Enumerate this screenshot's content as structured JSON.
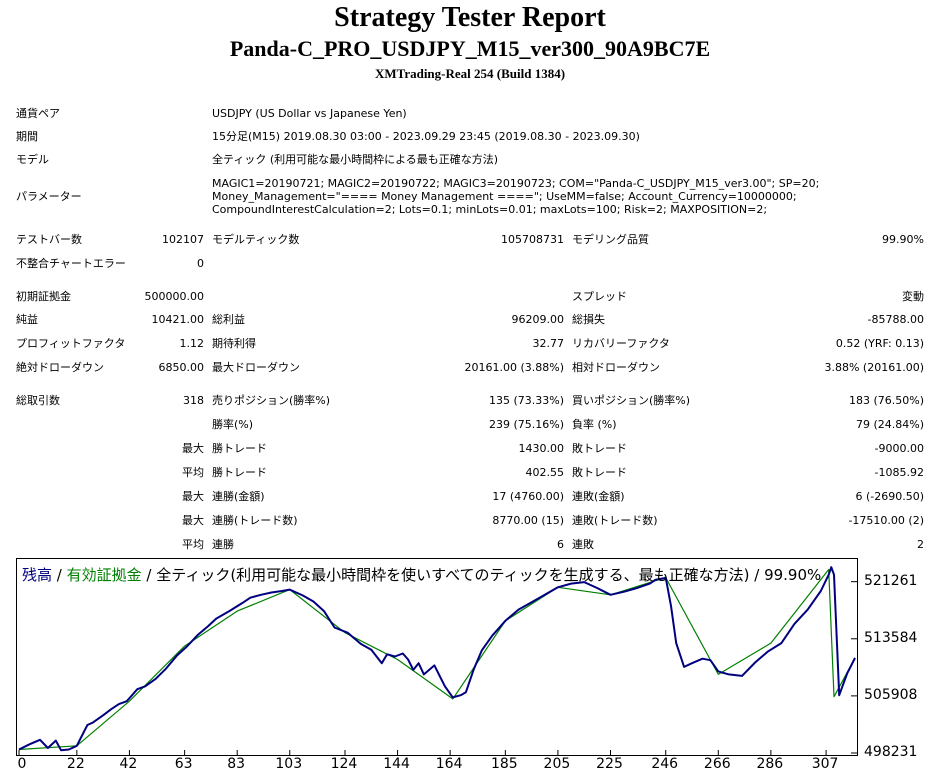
{
  "header": {
    "title": "Strategy Tester Report",
    "subtitle": "Panda-C_PRO_USDJPY_M15_ver300_90A9BC7E",
    "server": "XMTrading-Real 254 (Build 1384)"
  },
  "info": {
    "symbol_label": "通貨ペア",
    "symbol_value": "USDJPY (US Dollar vs Japanese Yen)",
    "period_label": "期間",
    "period_value": "15分足(M15) 2019.08.30 03:00 - 2023.09.29 23:45 (2019.08.30 - 2023.09.30)",
    "model_label": "モデル",
    "model_value": "全ティック (利用可能な最小時間枠による最も正確な方法)",
    "params_label": "パラメーター",
    "params_value": "MAGIC1=20190721; MAGIC2=20190722; MAGIC3=20190723; COM=\"Panda-C_USDJPY_M15_ver3.00\"; SP=20; Money_Management=\"==== Money Management ====\"; UseMM=false; Account_Currency=10000000; CompoundInterestCalculation=2; Lots=0.1; minLots=0.01; maxLots=100; Risk=2; MAXPOSITION=2;"
  },
  "stats": {
    "bars_label": "テストバー数",
    "bars_value": "102107",
    "ticks_label": "モデルティック数",
    "ticks_value": "105708731",
    "quality_label": "モデリング品質",
    "quality_value": "99.90%",
    "mismatch_label": "不整合チャートエラー",
    "mismatch_value": "0",
    "deposit_label": "初期証拠金",
    "deposit_value": "500000.00",
    "spread_label": "スプレッド",
    "spread_value": "変動",
    "net_label": "純益",
    "net_value": "10421.00",
    "gross_profit_label": "総利益",
    "gross_profit_value": "96209.00",
    "gross_loss_label": "総損失",
    "gross_loss_value": "-85788.00",
    "pf_label": "プロフィットファクタ",
    "pf_value": "1.12",
    "payoff_label": "期待利得",
    "payoff_value": "32.77",
    "recovery_label": "リカバリーファクタ",
    "recovery_value": "0.52 (YRF: 0.13)",
    "abs_dd_label": "絶対ドローダウン",
    "abs_dd_value": "6850.00",
    "max_dd_label": "最大ドローダウン",
    "max_dd_value": "20161.00 (3.88%)",
    "rel_dd_label": "相対ドローダウン",
    "rel_dd_value": "3.88% (20161.00)",
    "total_trades_label": "総取引数",
    "total_trades_value": "318",
    "short_label": "売りポジション(勝率%)",
    "short_value": "135 (73.33%)",
    "long_label": "買いポジション(勝率%)",
    "long_value": "183 (76.50%)",
    "win_pct_label": "勝率(%)",
    "win_pct_value": "239 (75.16%)",
    "loss_pct_label": "負率 (%)",
    "loss_pct_value": "79 (24.84%)",
    "largest": "最大",
    "average": "平均",
    "max_win_label": "勝トレード",
    "max_win_value": "1430.00",
    "max_loss_label": "敗トレード",
    "max_loss_value": "-9000.00",
    "avg_win_label": "勝トレード",
    "avg_win_value": "402.55",
    "avg_loss_label": "敗トレード",
    "avg_loss_value": "-1085.92",
    "consec_win_money_label": "連勝(金額)",
    "consec_win_money_value": "17 (4760.00)",
    "consec_loss_money_label": "連敗(金額)",
    "consec_loss_money_value": "6 (-2690.50)",
    "consec_win_trades_label": "連勝(トレード数)",
    "consec_win_trades_value": "8770.00 (15)",
    "consec_loss_trades_label": "連敗(トレード数)",
    "consec_loss_trades_value": "-17510.00 (2)",
    "avg_consec_win_label": "連勝",
    "avg_consec_win_value": "6",
    "avg_consec_loss_label": "連敗",
    "avg_consec_loss_value": "2"
  },
  "chart_caption": {
    "balance": "残高",
    "sep1": " / ",
    "equity": "有効証拠金",
    "rest": " / 全ティック(利用可能な最小時間枠を使いすべてのティックを生成する、最も正確な方法) / 99.90%"
  },
  "chart_data": {
    "type": "line",
    "x_ticks": [
      0,
      22,
      42,
      63,
      83,
      103,
      124,
      144,
      164,
      185,
      205,
      225,
      246,
      266,
      286,
      307
    ],
    "y_ticks": [
      498231,
      505908,
      513584,
      521261
    ],
    "xlim": [
      0,
      318
    ],
    "ylim": [
      498231,
      523500
    ],
    "grid": false,
    "balance_color": "#000080",
    "equity_color": "#008000",
    "series": [
      {
        "name": "残高",
        "x": [
          0,
          4,
          8,
          11,
          14,
          16,
          19,
          22,
          26,
          28,
          32,
          35,
          38,
          41,
          45,
          48,
          52,
          56,
          60,
          64,
          68,
          72,
          75,
          80,
          85,
          88,
          92,
          96,
          100,
          103,
          108,
          112,
          116,
          120,
          125,
          130,
          134,
          138,
          140,
          143,
          146,
          148,
          150,
          152,
          154,
          158,
          162,
          165,
          168,
          170,
          173,
          176,
          180,
          185,
          190,
          195,
          200,
          205,
          210,
          215,
          220,
          225,
          230,
          235,
          240,
          242,
          245,
          246,
          248,
          250,
          253,
          256,
          260,
          263,
          266,
          270,
          275,
          280,
          285,
          290,
          295,
          300,
          305,
          308,
          309,
          310,
          312,
          315,
          318
        ],
        "y": [
          498700,
          499400,
          500000,
          498900,
          499900,
          498600,
          498700,
          499200,
          502000,
          502300,
          503300,
          504100,
          504800,
          505200,
          506800,
          507200,
          508200,
          509600,
          511300,
          512600,
          514100,
          515300,
          516300,
          517300,
          518400,
          519100,
          519500,
          519800,
          520000,
          520200,
          519400,
          518600,
          517300,
          515100,
          514400,
          512900,
          512100,
          510300,
          511500,
          511200,
          511600,
          510800,
          509400,
          510300,
          508800,
          510000,
          507200,
          505700,
          506000,
          506400,
          509500,
          512000,
          514000,
          516000,
          517500,
          518500,
          519500,
          520500,
          521000,
          521200,
          520400,
          519500,
          519900,
          520400,
          521000,
          521500,
          521700,
          521800,
          518000,
          513000,
          509800,
          510300,
          510900,
          510700,
          509200,
          508800,
          508600,
          510400,
          511900,
          513000,
          515600,
          517500,
          520000,
          522200,
          523200,
          522200,
          506000,
          508900,
          511000
        ]
      },
      {
        "name": "有効証拠金",
        "x": [
          0,
          22,
          42,
          63,
          83,
          103,
          124,
          144,
          165,
          185,
          205,
          225,
          246,
          266,
          286,
          308,
          310,
          318
        ],
        "y": [
          498700,
          499200,
          505200,
          512600,
          517300,
          520200,
          514400,
          510800,
          505500,
          516000,
          520500,
          519500,
          521800,
          508800,
          513000,
          522900,
          505800,
          511000
        ]
      }
    ]
  }
}
